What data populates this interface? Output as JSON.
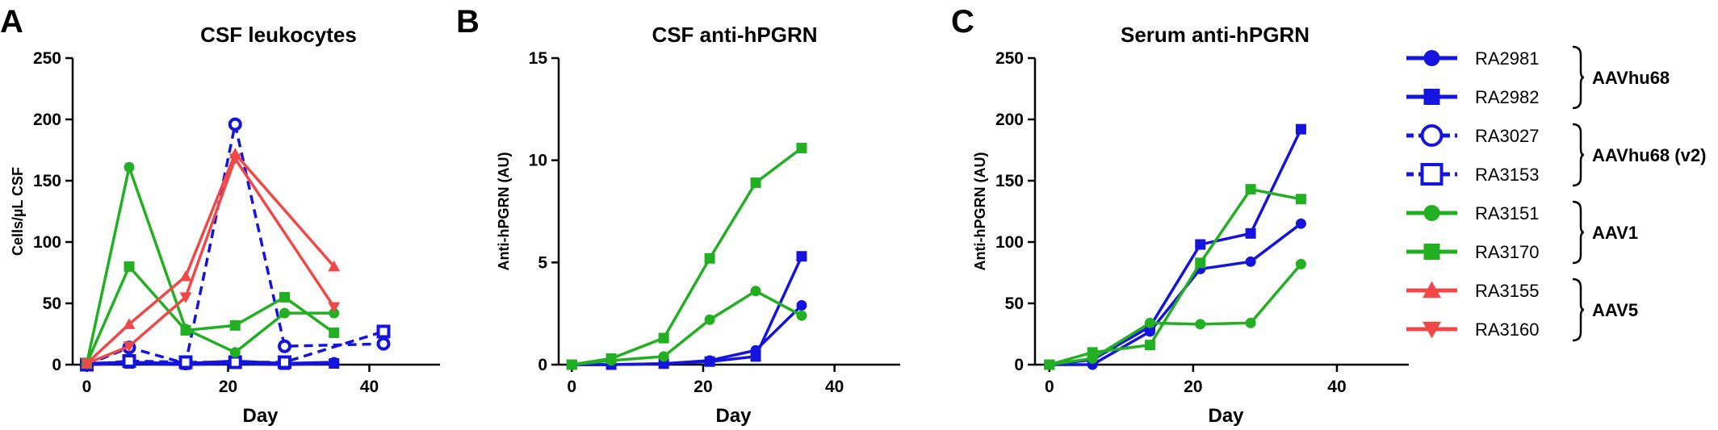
{
  "colors": {
    "blue": "#1414dc",
    "green": "#22b022",
    "red": "#f04848",
    "axis": "#000000"
  },
  "series_styles": {
    "RA2981": {
      "color": "blue",
      "marker": "circle",
      "dash": false,
      "open": false
    },
    "RA2982": {
      "color": "blue",
      "marker": "square",
      "dash": false,
      "open": false
    },
    "RA3027": {
      "color": "blue",
      "marker": "circle",
      "dash": true,
      "open": true
    },
    "RA3153": {
      "color": "blue",
      "marker": "square",
      "dash": true,
      "open": true
    },
    "RA3151": {
      "color": "green",
      "marker": "circle",
      "dash": false,
      "open": false
    },
    "RA3170": {
      "color": "green",
      "marker": "square",
      "dash": false,
      "open": false
    },
    "RA3155": {
      "color": "red",
      "marker": "triangle-up",
      "dash": false,
      "open": false
    },
    "RA3160": {
      "color": "red",
      "marker": "triangle-down",
      "dash": false,
      "open": false
    }
  },
  "legend": {
    "entries": [
      "RA2981",
      "RA2982",
      "RA3027",
      "RA3153",
      "RA3151",
      "RA3170",
      "RA3155",
      "RA3160"
    ],
    "groups": [
      {
        "label": "AAVhu68",
        "members": [
          "RA2981",
          "RA2982"
        ]
      },
      {
        "label": "AAVhu68 (v2)",
        "members": [
          "RA3027",
          "RA3153"
        ]
      },
      {
        "label": "AAV1",
        "members": [
          "RA3151",
          "RA3170"
        ]
      },
      {
        "label": "AAV5",
        "members": [
          "RA3155",
          "RA3160"
        ]
      }
    ]
  },
  "chart_data": [
    {
      "panel": "A",
      "type": "line",
      "title": "CSF leukocytes",
      "xlabel": "Day",
      "ylabel": "Cells/µL CSF",
      "xlim": [
        -2,
        50
      ],
      "ylim": [
        0,
        250
      ],
      "xticks": [
        0,
        20,
        40
      ],
      "yticks": [
        0,
        50,
        100,
        150,
        200,
        250
      ],
      "series": [
        {
          "name": "RA2981",
          "x": [
            0,
            6,
            14,
            21,
            28,
            35
          ],
          "y": [
            1,
            2,
            1,
            3,
            1,
            2
          ]
        },
        {
          "name": "RA2982",
          "x": [
            0,
            6,
            14,
            21,
            28,
            35
          ],
          "y": [
            0,
            1,
            0,
            1,
            0,
            1
          ]
        },
        {
          "name": "RA3027",
          "x": [
            0,
            6,
            14,
            21,
            28,
            42
          ],
          "y": [
            0,
            14,
            1,
            196,
            15,
            17
          ]
        },
        {
          "name": "RA3153",
          "x": [
            0,
            6,
            14,
            21,
            28,
            42
          ],
          "y": [
            0,
            3,
            2,
            2,
            2,
            27
          ]
        },
        {
          "name": "RA3151",
          "x": [
            0,
            6,
            14,
            21,
            28,
            35
          ],
          "y": [
            1,
            161,
            29,
            10,
            42,
            42
          ]
        },
        {
          "name": "RA3170",
          "x": [
            0,
            6,
            14,
            21,
            28,
            35
          ],
          "y": [
            1,
            80,
            28,
            32,
            55,
            26
          ]
        },
        {
          "name": "RA3155",
          "x": [
            0,
            6,
            14,
            21,
            35
          ],
          "y": [
            1,
            33,
            72,
            172,
            80
          ]
        },
        {
          "name": "RA3160",
          "x": [
            0,
            6,
            14,
            21,
            35
          ],
          "y": [
            1,
            15,
            55,
            168,
            47
          ]
        }
      ]
    },
    {
      "panel": "B",
      "type": "line",
      "title": "CSF anti-hPGRN",
      "xlabel": "Day",
      "ylabel": "Anti-hPGRN (AU)",
      "xlim": [
        -2,
        50
      ],
      "ylim": [
        0,
        15
      ],
      "xticks": [
        0,
        20,
        40
      ],
      "yticks": [
        0,
        5,
        10,
        15
      ],
      "series": [
        {
          "name": "RA2981",
          "x": [
            0,
            6,
            14,
            21,
            28,
            35
          ],
          "y": [
            0,
            0,
            0.05,
            0.2,
            0.7,
            2.9
          ]
        },
        {
          "name": "RA2982",
          "x": [
            0,
            6,
            14,
            21,
            28,
            35
          ],
          "y": [
            0,
            0,
            0.05,
            0.15,
            0.4,
            5.3
          ]
        },
        {
          "name": "RA3151",
          "x": [
            0,
            6,
            14,
            21,
            28,
            35
          ],
          "y": [
            0,
            0.2,
            0.4,
            2.2,
            3.6,
            2.4
          ]
        },
        {
          "name": "RA3170",
          "x": [
            0,
            6,
            14,
            21,
            28,
            35
          ],
          "y": [
            0,
            0.3,
            1.3,
            5.2,
            8.9,
            10.6
          ]
        }
      ]
    },
    {
      "panel": "C",
      "type": "line",
      "title": "Serum anti-hPGRN",
      "xlabel": "Day",
      "ylabel": "Anti-hPGRN (AU)",
      "xlim": [
        -2,
        50
      ],
      "ylim": [
        0,
        250
      ],
      "xticks": [
        0,
        20,
        40
      ],
      "yticks": [
        0,
        50,
        100,
        150,
        200,
        250
      ],
      "series": [
        {
          "name": "RA2981",
          "x": [
            0,
            6,
            14,
            21,
            28,
            35
          ],
          "y": [
            0,
            0,
            27,
            78,
            84,
            115
          ]
        },
        {
          "name": "RA2982",
          "x": [
            0,
            6,
            14,
            21,
            28,
            35
          ],
          "y": [
            0,
            4,
            31,
            98,
            107,
            192
          ]
        },
        {
          "name": "RA3151",
          "x": [
            0,
            6,
            14,
            21,
            28,
            35
          ],
          "y": [
            0,
            5,
            34,
            33,
            34,
            82
          ]
        },
        {
          "name": "RA3170",
          "x": [
            0,
            6,
            14,
            21,
            28,
            35
          ],
          "y": [
            0,
            10,
            16,
            83,
            143,
            135
          ]
        }
      ]
    }
  ]
}
